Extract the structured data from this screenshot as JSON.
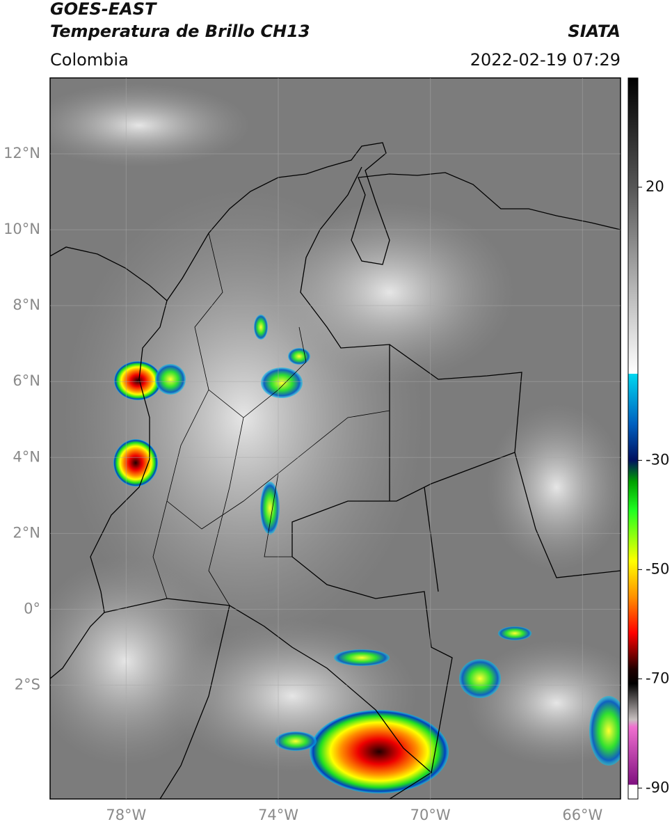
{
  "chart_data": {
    "type": "map",
    "title": "GOES-EAST",
    "subtitle": "Temperatura de Brillo CH13",
    "source": "SIATA",
    "region": "Colombia",
    "datetime": "2022-02-19 07:29",
    "xlim": [
      -80,
      -65
    ],
    "ylim": [
      -5,
      14
    ],
    "xticks": [
      {
        "value": -78,
        "label": "78°W"
      },
      {
        "value": -74,
        "label": "74°W"
      },
      {
        "value": -70,
        "label": "70°W"
      },
      {
        "value": -66,
        "label": "66°W"
      }
    ],
    "yticks": [
      {
        "value": 12,
        "label": "12°N"
      },
      {
        "value": 10,
        "label": "10°N"
      },
      {
        "value": 8,
        "label": "8°N"
      },
      {
        "value": 6,
        "label": "6°N"
      },
      {
        "value": 4,
        "label": "4°N"
      },
      {
        "value": 2,
        "label": "2°N"
      },
      {
        "value": 0,
        "label": "0°"
      },
      {
        "value": -2,
        "label": "2°S"
      }
    ],
    "grid": true,
    "colorbar": {
      "lim": [
        -92,
        40
      ],
      "ticks": [
        20,
        -30,
        -50,
        -70,
        -90
      ]
    }
  }
}
